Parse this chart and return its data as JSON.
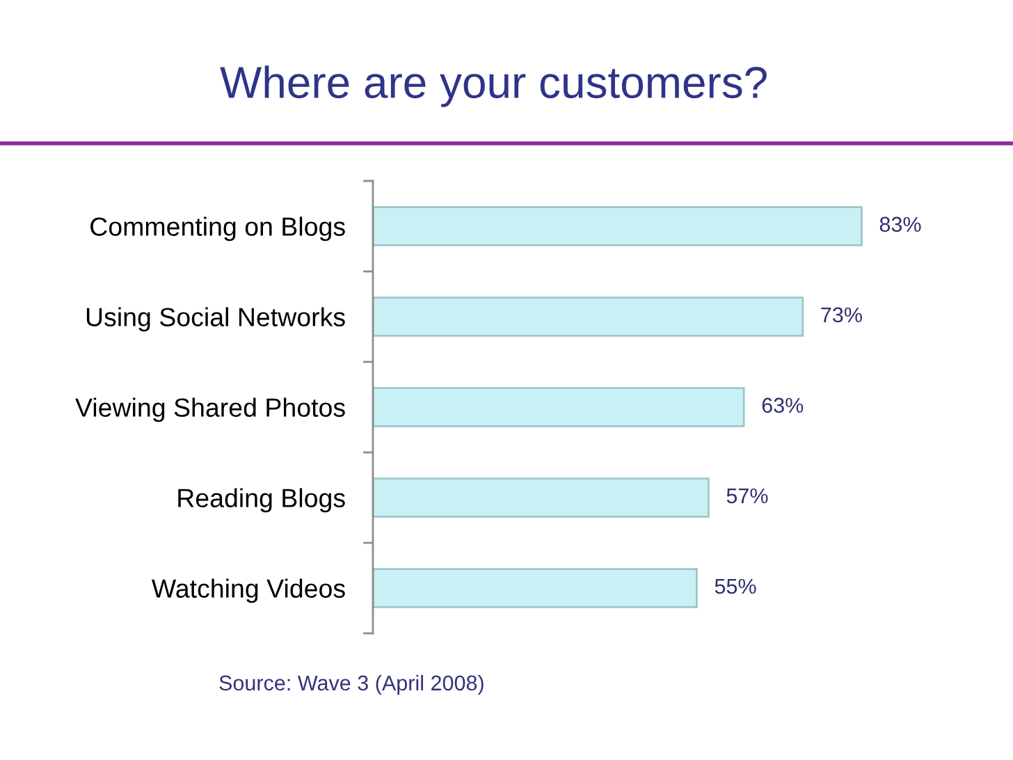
{
  "chart_data": {
    "type": "bar",
    "orientation": "horizontal",
    "title": "Where are your customers?",
    "categories": [
      "Commenting on Blogs",
      "Using Social Networks",
      "Viewing Shared Photos",
      "Reading Blogs",
      "Watching Videos"
    ],
    "values": [
      83,
      73,
      63,
      57,
      55
    ],
    "value_labels": [
      "83%",
      "73%",
      "63%",
      "57%",
      "55%"
    ],
    "color": "#c9f1f5",
    "tick_labels": "y",
    "annotations": [
      "Source: Wave 3 (April 2008)"
    ]
  }
}
